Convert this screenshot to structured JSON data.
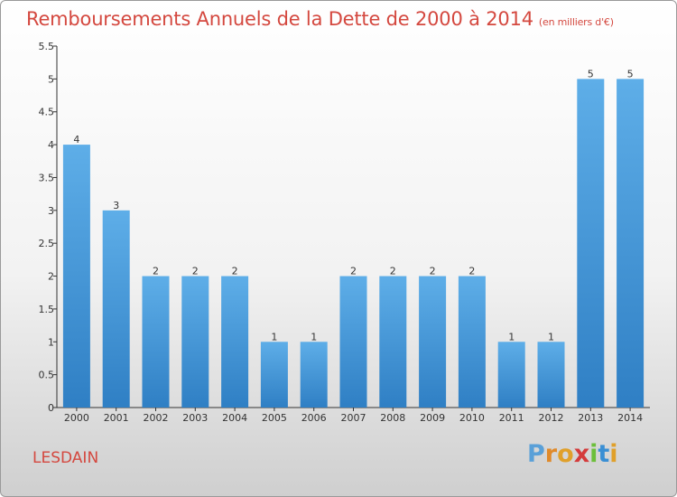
{
  "chart_data": {
    "type": "bar",
    "title": "Remboursements Annuels de la Dette de 2000 à 2014",
    "subtitle": "(en milliers d'€)",
    "categories": [
      "2000",
      "2001",
      "2002",
      "2003",
      "2004",
      "2005",
      "2006",
      "2007",
      "2008",
      "2009",
      "2010",
      "2011",
      "2012",
      "2013",
      "2014"
    ],
    "values": [
      4,
      3,
      2,
      2,
      2,
      1,
      1,
      2,
      2,
      2,
      2,
      1,
      1,
      5,
      5
    ],
    "data_labels": [
      "4",
      "3",
      "2",
      "2",
      "2",
      "1",
      "1",
      "2",
      "2",
      "2",
      "2",
      "1",
      "1",
      "5",
      "5"
    ],
    "yticks": [
      "0",
      "0.5",
      "1",
      "1.5",
      "2",
      "2.5",
      "3",
      "3.5",
      "4",
      "4.5",
      "5",
      "5.5"
    ],
    "ylim": [
      0,
      5.5
    ],
    "xlabel": "",
    "ylabel": "",
    "grid": false,
    "bar_color": "#3d8fd4"
  },
  "place": "LESDAIN",
  "logo": {
    "letters": [
      "P",
      "r",
      "o",
      "x",
      "i",
      "t",
      "i"
    ],
    "colors": [
      "#5aa0d8",
      "#e08a2a",
      "#e0a02a",
      "#d43a3a",
      "#6cbf3a",
      "#3a8fd4",
      "#e0a02a"
    ]
  },
  "colors": {
    "title": "#d4483f",
    "axis": "#333333"
  }
}
